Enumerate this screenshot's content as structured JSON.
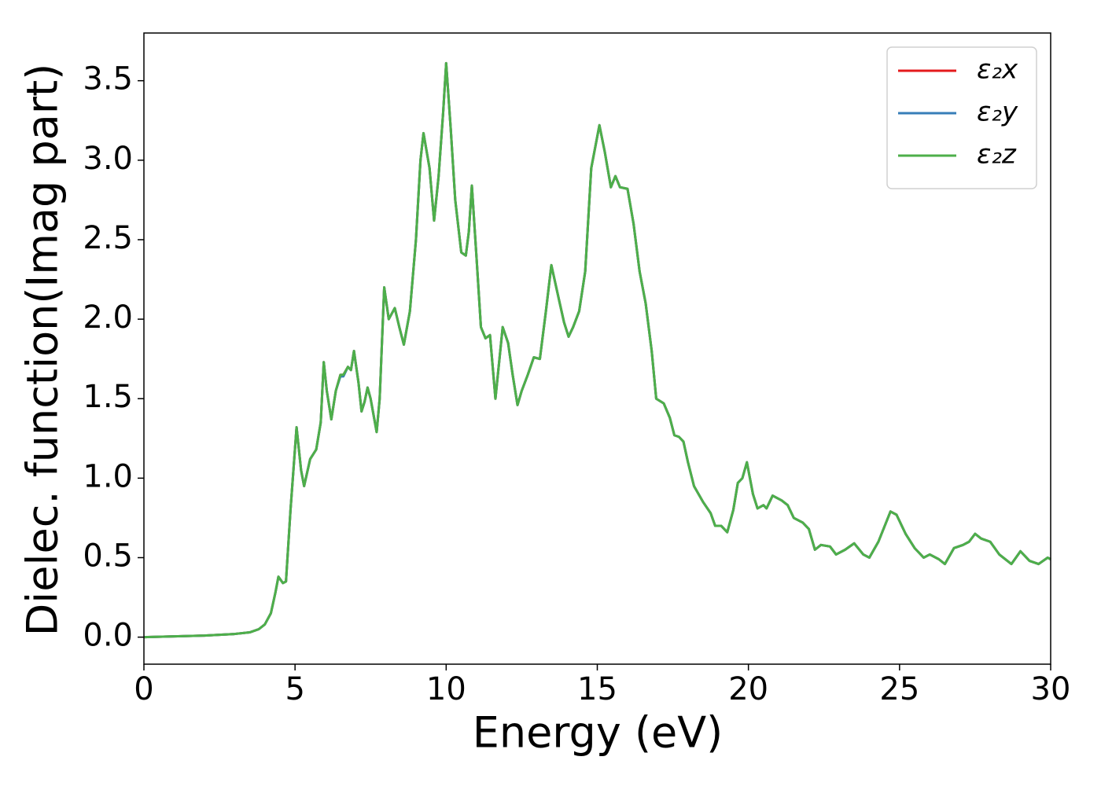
{
  "chart_data": {
    "type": "line",
    "xlabel": "Energy (eV)",
    "ylabel": "Dielec. function(Imag part)",
    "xlim": [
      0,
      30
    ],
    "ylim": [
      -0.17,
      3.8
    ],
    "xticks": [
      0,
      5,
      10,
      15,
      20,
      25,
      30
    ],
    "yticks": [
      {
        "value": 0,
        "label": "0.0"
      },
      0.5,
      {
        "value": 1,
        "label": "1.0"
      },
      1.5,
      {
        "value": 2,
        "label": "2.0"
      },
      2.5,
      {
        "value": 3,
        "label": "3.0"
      },
      3.5
    ],
    "legend": "upper right",
    "x": [
      0,
      1,
      2,
      3,
      3.5,
      3.8,
      4.0,
      4.2,
      4.35,
      4.45,
      4.6,
      4.7,
      4.85,
      5.05,
      5.2,
      5.3,
      5.5,
      5.7,
      5.85,
      5.95,
      6.05,
      6.2,
      6.35,
      6.5,
      6.6,
      6.75,
      6.85,
      6.95,
      7.1,
      7.2,
      7.3,
      7.4,
      7.5,
      7.7,
      7.8,
      7.95,
      8.1,
      8.3,
      8.45,
      8.6,
      8.8,
      9.0,
      9.15,
      9.25,
      9.45,
      9.6,
      9.75,
      9.9,
      10.0,
      10.15,
      10.3,
      10.5,
      10.65,
      10.75,
      10.85,
      11.0,
      11.15,
      11.3,
      11.45,
      11.63,
      11.87,
      12.05,
      12.2,
      12.36,
      12.5,
      12.7,
      12.9,
      13.1,
      13.3,
      13.48,
      13.7,
      13.9,
      14.05,
      14.2,
      14.4,
      14.6,
      14.8,
      15.0,
      15.07,
      15.25,
      15.45,
      15.6,
      15.75,
      16.0,
      16.2,
      16.4,
      16.6,
      16.8,
      16.95,
      17.2,
      17.4,
      17.55,
      17.7,
      17.85,
      18.0,
      18.2,
      18.5,
      18.75,
      18.9,
      19.1,
      19.3,
      19.5,
      19.65,
      19.8,
      19.95,
      20.15,
      20.3,
      20.5,
      20.6,
      20.8,
      21.1,
      21.3,
      21.5,
      21.8,
      22.0,
      22.2,
      22.4,
      22.7,
      22.9,
      23.2,
      23.5,
      23.8,
      24.0,
      24.3,
      24.7,
      24.9,
      25.2,
      25.5,
      25.8,
      26.0,
      26.3,
      26.5,
      26.8,
      27.1,
      27.3,
      27.5,
      27.7,
      28.0,
      28.3,
      28.7,
      29.0,
      29.3,
      29.6,
      29.9,
      30
    ],
    "series": [
      {
        "name": "ε₂x",
        "color": "#e41a1c",
        "values": [
          0,
          0.005,
          0.01,
          0.02,
          0.03,
          0.05,
          0.08,
          0.15,
          0.28,
          0.38,
          0.34,
          0.35,
          0.8,
          1.32,
          1.05,
          0.95,
          1.12,
          1.18,
          1.35,
          1.73,
          1.55,
          1.37,
          1.55,
          1.65,
          1.65,
          1.7,
          1.68,
          1.8,
          1.6,
          1.42,
          1.48,
          1.57,
          1.5,
          1.29,
          1.5,
          2.2,
          2.0,
          2.07,
          1.95,
          1.84,
          2.05,
          2.5,
          3.0,
          3.17,
          2.95,
          2.62,
          2.9,
          3.3,
          3.61,
          3.2,
          2.75,
          2.42,
          2.4,
          2.55,
          2.84,
          2.4,
          1.95,
          1.88,
          1.9,
          1.5,
          1.95,
          1.85,
          1.65,
          1.46,
          1.55,
          1.65,
          1.76,
          1.75,
          2.05,
          2.34,
          2.15,
          1.98,
          1.89,
          1.95,
          2.05,
          2.3,
          2.95,
          3.15,
          3.22,
          3.05,
          2.83,
          2.9,
          2.83,
          2.82,
          2.6,
          2.3,
          2.1,
          1.8,
          1.5,
          1.47,
          1.38,
          1.27,
          1.26,
          1.23,
          1.1,
          0.95,
          0.85,
          0.78,
          0.7,
          0.7,
          0.66,
          0.8,
          0.97,
          1.0,
          1.1,
          0.9,
          0.81,
          0.83,
          0.81,
          0.89,
          0.86,
          0.83,
          0.75,
          0.72,
          0.68,
          0.55,
          0.58,
          0.57,
          0.52,
          0.55,
          0.59,
          0.52,
          0.5,
          0.6,
          0.79,
          0.77,
          0.65,
          0.56,
          0.5,
          0.52,
          0.49,
          0.46,
          0.56,
          0.58,
          0.6,
          0.65,
          0.62,
          0.6,
          0.52,
          0.46,
          0.54,
          0.48,
          0.46,
          0.5,
          0.49
        ]
      },
      {
        "name": "ε₂y",
        "color": "#377eb8",
        "values": [
          0,
          0.005,
          0.01,
          0.02,
          0.03,
          0.05,
          0.08,
          0.15,
          0.28,
          0.38,
          0.34,
          0.35,
          0.8,
          1.32,
          1.05,
          0.95,
          1.12,
          1.18,
          1.35,
          1.73,
          1.55,
          1.37,
          1.55,
          1.64,
          1.64,
          1.7,
          1.68,
          1.8,
          1.6,
          1.42,
          1.48,
          1.57,
          1.5,
          1.29,
          1.5,
          2.2,
          2.0,
          2.07,
          1.95,
          1.84,
          2.05,
          2.5,
          3.0,
          3.17,
          2.95,
          2.62,
          2.9,
          3.3,
          3.61,
          3.2,
          2.75,
          2.42,
          2.4,
          2.55,
          2.84,
          2.4,
          1.95,
          1.88,
          1.9,
          1.5,
          1.95,
          1.85,
          1.65,
          1.46,
          1.55,
          1.65,
          1.76,
          1.75,
          2.05,
          2.34,
          2.15,
          1.98,
          1.89,
          1.95,
          2.05,
          2.3,
          2.95,
          3.15,
          3.22,
          3.05,
          2.83,
          2.9,
          2.83,
          2.82,
          2.6,
          2.3,
          2.1,
          1.8,
          1.5,
          1.47,
          1.38,
          1.27,
          1.26,
          1.23,
          1.1,
          0.95,
          0.85,
          0.78,
          0.7,
          0.7,
          0.66,
          0.8,
          0.97,
          1.0,
          1.1,
          0.9,
          0.81,
          0.83,
          0.81,
          0.89,
          0.86,
          0.83,
          0.75,
          0.72,
          0.68,
          0.55,
          0.58,
          0.57,
          0.52,
          0.55,
          0.59,
          0.52,
          0.5,
          0.6,
          0.79,
          0.77,
          0.65,
          0.56,
          0.5,
          0.52,
          0.49,
          0.46,
          0.56,
          0.58,
          0.6,
          0.65,
          0.62,
          0.6,
          0.52,
          0.46,
          0.54,
          0.48,
          0.46,
          0.5,
          0.49
        ]
      },
      {
        "name": "ε₂z",
        "color": "#4daf4a",
        "values": [
          0,
          0.005,
          0.01,
          0.02,
          0.03,
          0.05,
          0.08,
          0.15,
          0.28,
          0.38,
          0.34,
          0.35,
          0.8,
          1.32,
          1.05,
          0.95,
          1.12,
          1.18,
          1.35,
          1.73,
          1.55,
          1.37,
          1.55,
          1.65,
          1.65,
          1.7,
          1.68,
          1.8,
          1.6,
          1.42,
          1.48,
          1.57,
          1.5,
          1.29,
          1.5,
          2.2,
          2.0,
          2.07,
          1.95,
          1.84,
          2.05,
          2.5,
          3.0,
          3.17,
          2.95,
          2.62,
          2.9,
          3.3,
          3.61,
          3.2,
          2.75,
          2.42,
          2.4,
          2.55,
          2.84,
          2.4,
          1.95,
          1.88,
          1.9,
          1.5,
          1.95,
          1.85,
          1.65,
          1.46,
          1.55,
          1.65,
          1.76,
          1.75,
          2.05,
          2.34,
          2.15,
          1.98,
          1.89,
          1.95,
          2.05,
          2.3,
          2.95,
          3.15,
          3.22,
          3.05,
          2.83,
          2.9,
          2.83,
          2.82,
          2.6,
          2.3,
          2.1,
          1.8,
          1.5,
          1.47,
          1.38,
          1.27,
          1.26,
          1.23,
          1.1,
          0.95,
          0.85,
          0.78,
          0.7,
          0.7,
          0.66,
          0.8,
          0.97,
          1.0,
          1.1,
          0.9,
          0.81,
          0.83,
          0.81,
          0.89,
          0.86,
          0.83,
          0.75,
          0.72,
          0.68,
          0.55,
          0.58,
          0.57,
          0.52,
          0.55,
          0.59,
          0.52,
          0.5,
          0.6,
          0.79,
          0.77,
          0.65,
          0.56,
          0.5,
          0.52,
          0.49,
          0.46,
          0.56,
          0.58,
          0.6,
          0.65,
          0.62,
          0.6,
          0.52,
          0.46,
          0.54,
          0.48,
          0.46,
          0.5,
          0.49
        ]
      }
    ]
  }
}
